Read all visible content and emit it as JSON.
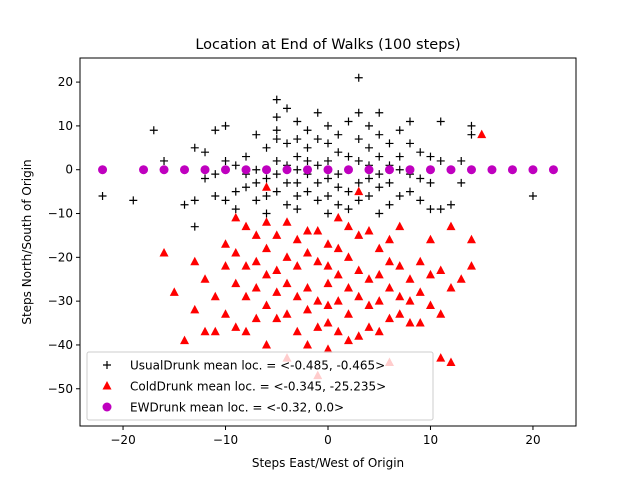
{
  "chart_data": {
    "type": "scatter",
    "title": "Location at End of Walks (100 steps)",
    "xlabel": "Steps East/West of Origin",
    "ylabel": "Steps North/South of Origin",
    "xlim": [
      -24.2,
      24.2
    ],
    "ylim": [
      -58.5,
      25.5
    ],
    "xticks": [
      -20,
      -10,
      0,
      10,
      20
    ],
    "yticks": [
      -50,
      -40,
      -30,
      -20,
      -10,
      0,
      10,
      20
    ],
    "xtick_labels": [
      "−20",
      "−10",
      "0",
      "10",
      "20"
    ],
    "ytick_labels": [
      "−50",
      "−40",
      "−30",
      "−20",
      "−10",
      "0",
      "10",
      "20"
    ],
    "grid": false,
    "legend_position": "lower left",
    "series": [
      {
        "name": "UsualDrunk mean loc. = <-0.485, -0.465>",
        "marker": "plus",
        "color": "#000000",
        "points": [
          [
            -22,
            -6
          ],
          [
            -19,
            -7
          ],
          [
            -17,
            9
          ],
          [
            -16,
            2
          ],
          [
            -16,
            0
          ],
          [
            -14,
            -8
          ],
          [
            -13,
            -7
          ],
          [
            -13,
            5
          ],
          [
            -13,
            -13
          ],
          [
            -12,
            4
          ],
          [
            -12,
            -2
          ],
          [
            -11,
            -6
          ],
          [
            -11,
            -1
          ],
          [
            -11,
            9
          ],
          [
            -10,
            2
          ],
          [
            -10,
            10
          ],
          [
            -10,
            -7
          ],
          [
            -9,
            1
          ],
          [
            -9,
            -5
          ],
          [
            -9,
            -9
          ],
          [
            -8,
            3
          ],
          [
            -8,
            -1
          ],
          [
            -8,
            -4
          ],
          [
            -7,
            8
          ],
          [
            -7,
            0
          ],
          [
            -7,
            -3
          ],
          [
            -7,
            -7
          ],
          [
            -6,
            5
          ],
          [
            -6,
            0
          ],
          [
            -6,
            -2
          ],
          [
            -6,
            -6
          ],
          [
            -6,
            -10
          ],
          [
            -5,
            16
          ],
          [
            -5,
            12
          ],
          [
            -5,
            9
          ],
          [
            -5,
            7
          ],
          [
            -5,
            2
          ],
          [
            -5,
            -1
          ],
          [
            -5,
            -5
          ],
          [
            -4,
            14
          ],
          [
            -4,
            6
          ],
          [
            -4,
            1
          ],
          [
            -4,
            -3
          ],
          [
            -4,
            -8
          ],
          [
            -3,
            11
          ],
          [
            -3,
            7
          ],
          [
            -3,
            3
          ],
          [
            -3,
            0
          ],
          [
            -3,
            -3
          ],
          [
            -3,
            -6
          ],
          [
            -3,
            -9
          ],
          [
            -2,
            9
          ],
          [
            -2,
            5
          ],
          [
            -2,
            2
          ],
          [
            -2,
            -1
          ],
          [
            -2,
            -5
          ],
          [
            -1,
            13
          ],
          [
            -1,
            7
          ],
          [
            -1,
            1
          ],
          [
            -1,
            -3
          ],
          [
            -1,
            -7
          ],
          [
            0,
            10
          ],
          [
            0,
            6
          ],
          [
            0,
            2
          ],
          [
            0,
            -2
          ],
          [
            0,
            -6
          ],
          [
            0,
            -10
          ],
          [
            1,
            8
          ],
          [
            1,
            4
          ],
          [
            1,
            -1
          ],
          [
            1,
            -4
          ],
          [
            1,
            -8
          ],
          [
            2,
            11
          ],
          [
            2,
            3
          ],
          [
            2,
            0
          ],
          [
            2,
            -5
          ],
          [
            2,
            -9
          ],
          [
            3,
            21
          ],
          [
            3,
            13
          ],
          [
            3,
            7
          ],
          [
            3,
            2
          ],
          [
            3,
            -3
          ],
          [
            3,
            -7
          ],
          [
            4,
            10
          ],
          [
            4,
            5
          ],
          [
            4,
            1
          ],
          [
            4,
            -2
          ],
          [
            4,
            -6
          ],
          [
            5,
            13
          ],
          [
            5,
            8
          ],
          [
            5,
            3
          ],
          [
            5,
            -1
          ],
          [
            5,
            -4
          ],
          [
            5,
            -10
          ],
          [
            6,
            6
          ],
          [
            6,
            1
          ],
          [
            6,
            -3
          ],
          [
            6,
            -8
          ],
          [
            7,
            9
          ],
          [
            7,
            3
          ],
          [
            7,
            0
          ],
          [
            7,
            -6
          ],
          [
            8,
            11
          ],
          [
            8,
            6
          ],
          [
            8,
            -1
          ],
          [
            8,
            -5
          ],
          [
            9,
            4
          ],
          [
            9,
            -2
          ],
          [
            9,
            -7
          ],
          [
            10,
            3
          ],
          [
            10,
            -3
          ],
          [
            10,
            -9
          ],
          [
            11,
            11
          ],
          [
            11,
            2
          ],
          [
            11,
            -9
          ],
          [
            12,
            -8
          ],
          [
            13,
            -3
          ],
          [
            13,
            2
          ],
          [
            14,
            10
          ],
          [
            14,
            8
          ],
          [
            20,
            -6
          ]
        ]
      },
      {
        "name": "ColdDrunk mean loc. = <-0.345, -25.235>",
        "marker": "triangle",
        "color": "#ff0000",
        "points": [
          [
            -16,
            -19
          ],
          [
            -15,
            -28
          ],
          [
            -14,
            -39
          ],
          [
            -13,
            -21
          ],
          [
            -13,
            -32
          ],
          [
            -12,
            -25
          ],
          [
            -12,
            -37
          ],
          [
            -11,
            -29
          ],
          [
            -11,
            -37
          ],
          [
            -10,
            -17
          ],
          [
            -10,
            -22
          ],
          [
            -10,
            -33
          ],
          [
            -9,
            -11
          ],
          [
            -9,
            -19
          ],
          [
            -9,
            -26
          ],
          [
            -9,
            -36
          ],
          [
            -8,
            -13
          ],
          [
            -8,
            -22
          ],
          [
            -8,
            -29
          ],
          [
            -8,
            -37
          ],
          [
            -7,
            -15
          ],
          [
            -7,
            -21
          ],
          [
            -7,
            -27
          ],
          [
            -7,
            -34
          ],
          [
            -6,
            -4
          ],
          [
            -6,
            -12
          ],
          [
            -6,
            -18
          ],
          [
            -6,
            -24
          ],
          [
            -6,
            -31
          ],
          [
            -6,
            -40
          ],
          [
            -5,
            -15
          ],
          [
            -5,
            -23
          ],
          [
            -5,
            -28
          ],
          [
            -5,
            -34
          ],
          [
            -4,
            -12
          ],
          [
            -4,
            -20
          ],
          [
            -4,
            -26
          ],
          [
            -4,
            -33
          ],
          [
            -4,
            -43
          ],
          [
            -3,
            -16
          ],
          [
            -3,
            -22
          ],
          [
            -3,
            -29
          ],
          [
            -3,
            -37
          ],
          [
            -2,
            -14
          ],
          [
            -2,
            -19
          ],
          [
            -2,
            -27
          ],
          [
            -2,
            -32
          ],
          [
            -2,
            -40
          ],
          [
            -1,
            -14
          ],
          [
            -1,
            -21
          ],
          [
            -1,
            -30
          ],
          [
            -1,
            -36
          ],
          [
            -1,
            -47
          ],
          [
            0,
            -17
          ],
          [
            0,
            -22
          ],
          [
            0,
            -26
          ],
          [
            0,
            -31
          ],
          [
            0,
            -35
          ],
          [
            0,
            -41
          ],
          [
            1,
            -11
          ],
          [
            1,
            -18
          ],
          [
            1,
            -24
          ],
          [
            1,
            -30
          ],
          [
            1,
            -37
          ],
          [
            2,
            -13
          ],
          [
            2,
            -20
          ],
          [
            2,
            -27
          ],
          [
            2,
            -33
          ],
          [
            2,
            -39
          ],
          [
            3,
            -5
          ],
          [
            3,
            -15
          ],
          [
            3,
            -23
          ],
          [
            3,
            -29
          ],
          [
            3,
            -38
          ],
          [
            4,
            -14
          ],
          [
            4,
            -25
          ],
          [
            4,
            -31
          ],
          [
            4,
            -36
          ],
          [
            5,
            -18
          ],
          [
            5,
            -24
          ],
          [
            5,
            -30
          ],
          [
            5,
            -37
          ],
          [
            6,
            -16
          ],
          [
            6,
            -21
          ],
          [
            6,
            -27
          ],
          [
            6,
            -34
          ],
          [
            6,
            -44
          ],
          [
            7,
            -13
          ],
          [
            7,
            -22
          ],
          [
            7,
            -29
          ],
          [
            7,
            -33
          ],
          [
            8,
            -25
          ],
          [
            8,
            -30
          ],
          [
            8,
            -35
          ],
          [
            9,
            -21
          ],
          [
            9,
            -28
          ],
          [
            9,
            -35
          ],
          [
            10,
            -16
          ],
          [
            10,
            -24
          ],
          [
            10,
            -31
          ],
          [
            11,
            -23
          ],
          [
            11,
            -33
          ],
          [
            11,
            -43
          ],
          [
            12,
            -13
          ],
          [
            12,
            -27
          ],
          [
            12,
            -44
          ],
          [
            13,
            -25
          ],
          [
            14,
            -16
          ],
          [
            14,
            -22
          ],
          [
            15,
            8
          ]
        ]
      },
      {
        "name": "EWDrunk mean loc. = <-0.32, 0.0>",
        "marker": "circle",
        "color": "#bf00bf",
        "points": [
          [
            -22,
            0
          ],
          [
            -18,
            0
          ],
          [
            -16,
            0
          ],
          [
            -14,
            0
          ],
          [
            -12,
            0
          ],
          [
            -10,
            0
          ],
          [
            -8,
            0
          ],
          [
            -6,
            0
          ],
          [
            -4,
            0
          ],
          [
            -2,
            0
          ],
          [
            0,
            0
          ],
          [
            2,
            0
          ],
          [
            4,
            0
          ],
          [
            6,
            0
          ],
          [
            8,
            0
          ],
          [
            10,
            0
          ],
          [
            12,
            0
          ],
          [
            14,
            0
          ],
          [
            16,
            0
          ],
          [
            18,
            0
          ],
          [
            20,
            0
          ],
          [
            22,
            0
          ]
        ]
      }
    ]
  }
}
